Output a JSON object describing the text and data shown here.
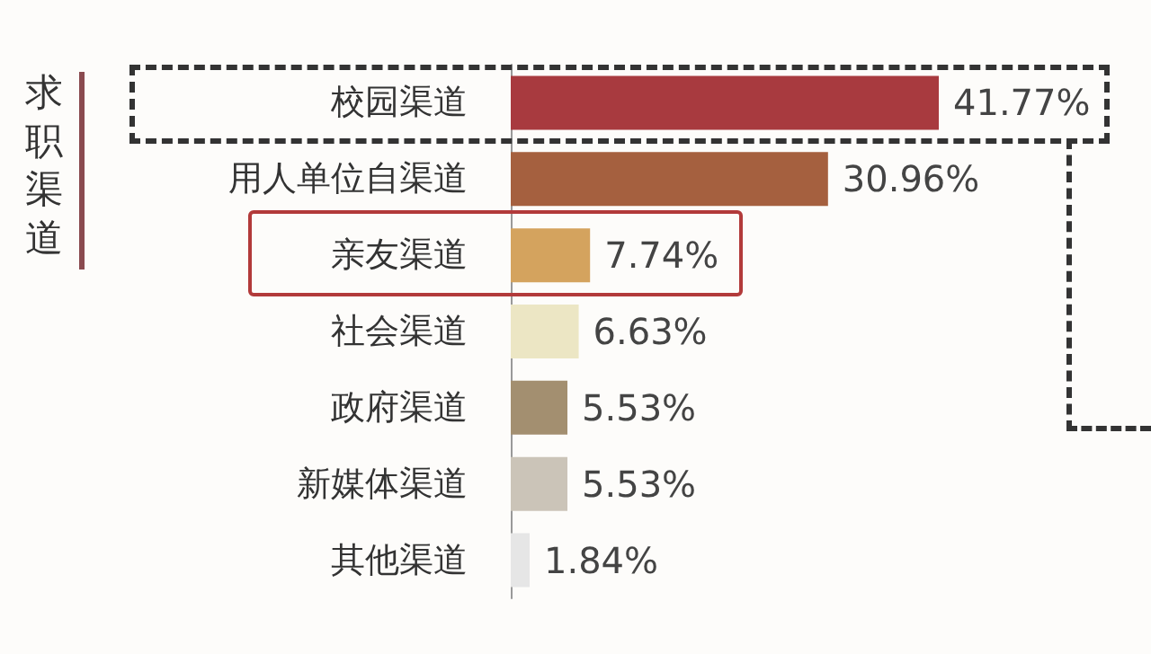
{
  "chart_data": {
    "type": "bar",
    "orientation": "horizontal",
    "ylabel": "求职渠道",
    "categories": [
      "校园渠道",
      "用人单位自渠道",
      "亲友渠道",
      "社会渠道",
      "政府渠道",
      "新媒体渠道",
      "其他渠道"
    ],
    "values": [
      41.77,
      30.96,
      7.74,
      6.63,
      5.53,
      5.53,
      1.84
    ],
    "value_labels": [
      "41.77%",
      "30.96%",
      "7.74%",
      "6.63%",
      "5.53%",
      "5.53%",
      "1.84%"
    ],
    "colors": [
      "#a83a3f",
      "#a5603f",
      "#d4a35e",
      "#ece6c4",
      "#a38f70",
      "#cbc4b8",
      "#e6e6e6"
    ]
  }
}
